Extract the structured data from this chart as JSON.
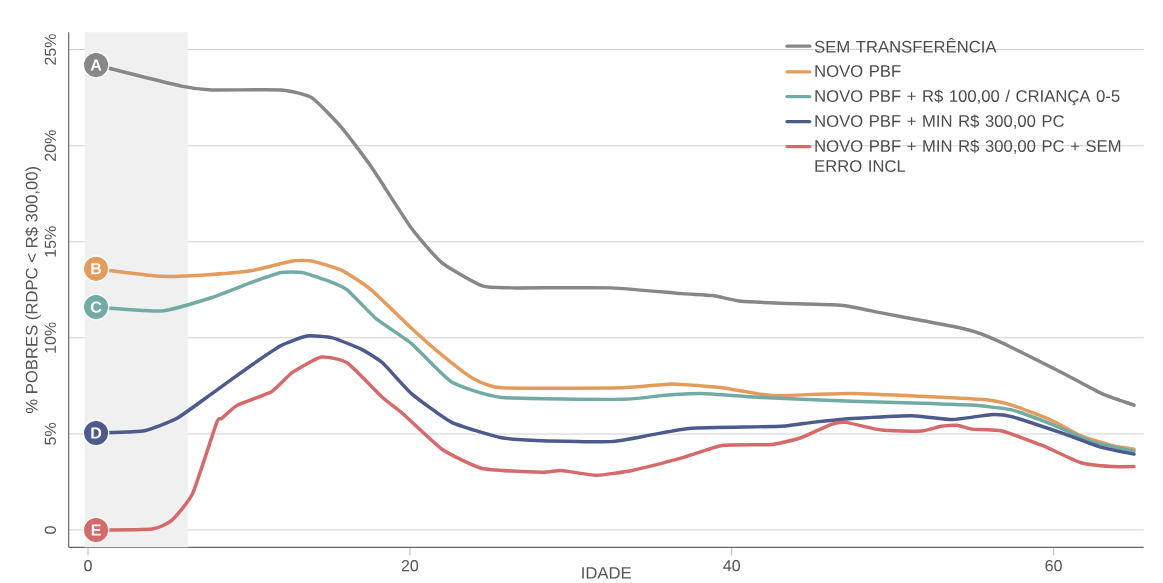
{
  "chart_data": {
    "type": "line",
    "xlabel": "IDADE",
    "ylabel": "% POBRES (RDPC < R$ 300,00)",
    "xlim": [
      -1.2,
      65.6
    ],
    "ylim": [
      -0.9,
      25.9
    ],
    "xticks": [
      0,
      20,
      40,
      60
    ],
    "yticks": [
      0,
      {
        "value": 5,
        "label": "5%"
      },
      {
        "value": 10,
        "label": "10%"
      },
      {
        "value": 15,
        "label": "15%"
      },
      {
        "value": 20,
        "label": "20%"
      },
      {
        "value": 25,
        "label": "25%"
      }
    ],
    "grid": "y",
    "legend": "top right",
    "line_style": "solid",
    "bands": [
      {
        "axis": "x",
        "from": -0.2,
        "to": 6.2,
        "color": "#f0f0f0"
      }
    ],
    "series": [
      {
        "name": "SEM TRANSFERÊNCIA",
        "color": "#878787",
        "x": [
          0.5,
          5.8,
          7.7,
          12,
          13.9,
          15.8,
          17.6,
          20.1,
          22,
          24.5,
          26.3,
          32.5,
          36.9,
          38.8,
          40.6,
          43.1,
          46.8,
          49.3,
          51.8,
          54.3,
          55.5,
          57.4,
          60.5,
          63,
          65
        ],
        "values": [
          24.2,
          23.1,
          22.9,
          22.9,
          22.5,
          20.9,
          18.9,
          15.7,
          13.9,
          12.7,
          12.6,
          12.6,
          12.3,
          12.2,
          11.9,
          11.8,
          11.7,
          11.3,
          10.9,
          10.5,
          10.2,
          9.5,
          8.2,
          7.1,
          6.5
        ]
      },
      {
        "name": "NOVO PBF",
        "color": "#e39c5c",
        "x": [
          0.5,
          4.6,
          7.7,
          10.2,
          12.7,
          13.9,
          15.8,
          17.6,
          20.1,
          22,
          23.9,
          25.7,
          33.2,
          36.3,
          39.4,
          42.5,
          47.5,
          55.5,
          57.4,
          59.9,
          61.7,
          63.6,
          65
        ],
        "values": [
          13.6,
          13.2,
          13.3,
          13.5,
          14.0,
          14.0,
          13.5,
          12.5,
          10.5,
          9.1,
          7.9,
          7.4,
          7.4,
          7.6,
          7.4,
          7.0,
          7.1,
          6.8,
          6.5,
          5.7,
          4.9,
          4.4,
          4.2
        ]
      },
      {
        "name": "NOVO PBF + R$ 100,00 / CRIANÇA 0-5",
        "color": "#72aba6",
        "x": [
          0.5,
          4.6,
          7.7,
          10.2,
          12,
          13.3,
          14.8,
          16.1,
          17.9,
          20.1,
          22.6,
          25.7,
          33.2,
          35.7,
          38.1,
          41.9,
          47.5,
          51.8,
          54.9,
          57.4,
          59.9,
          62.4,
          65
        ],
        "values": [
          11.6,
          11.4,
          12.1,
          12.9,
          13.4,
          13.4,
          13.0,
          12.5,
          11.0,
          9.7,
          7.7,
          6.9,
          6.8,
          7.0,
          7.1,
          6.9,
          6.7,
          6.6,
          6.5,
          6.25,
          5.5,
          4.6,
          4.1
        ]
      },
      {
        "name": "NOVO PBF + MIN R$ 300,00 PC",
        "color": "#4d5b8c",
        "x": [
          0.5,
          3.4,
          5.5,
          7.7,
          10.2,
          12,
          13.6,
          15.2,
          17,
          18.3,
          20.1,
          22.6,
          25.7,
          28.2,
          32.5,
          35,
          37.5,
          43.1,
          45,
          47.5,
          51.2,
          53.7,
          56.1,
          57.4,
          60.5,
          63,
          65
        ],
        "values": [
          5.05,
          5.15,
          5.8,
          7.1,
          8.6,
          9.6,
          10.1,
          10.0,
          9.4,
          8.7,
          7.1,
          5.6,
          4.8,
          4.65,
          4.6,
          4.95,
          5.3,
          5.4,
          5.6,
          5.8,
          5.95,
          5.75,
          6.0,
          5.9,
          5.05,
          4.3,
          3.95
        ]
      },
      {
        "name": "NOVO PBF + MIN R$ 300,00 PC + SEM ERRO INCL",
        "color": "#d46a6a",
        "x": [
          0.5,
          4,
          5.2,
          6.5,
          8,
          8.3,
          9.3,
          11.4,
          12.7,
          14.5,
          16.1,
          18.3,
          19.5,
          22,
          24.5,
          28.2,
          29.4,
          31.6,
          33.8,
          36.9,
          39.4,
          42.5,
          44.3,
          46.2,
          47.1,
          49.3,
          51.8,
          53,
          54,
          54.9,
          56.8,
          59.3,
          61.7,
          63.6,
          65
        ],
        "values": [
          0,
          0.05,
          0.5,
          1.9,
          5.6,
          5.8,
          6.5,
          7.2,
          8.2,
          9.0,
          8.7,
          6.9,
          6.1,
          4.2,
          3.2,
          3.0,
          3.1,
          2.85,
          3.1,
          3.75,
          4.4,
          4.45,
          4.8,
          5.5,
          5.6,
          5.2,
          5.15,
          5.4,
          5.45,
          5.25,
          5.15,
          4.4,
          3.5,
          3.3,
          3.3
        ]
      }
    ],
    "annotations": [
      "A",
      "B",
      "C",
      "D",
      "E"
    ]
  }
}
